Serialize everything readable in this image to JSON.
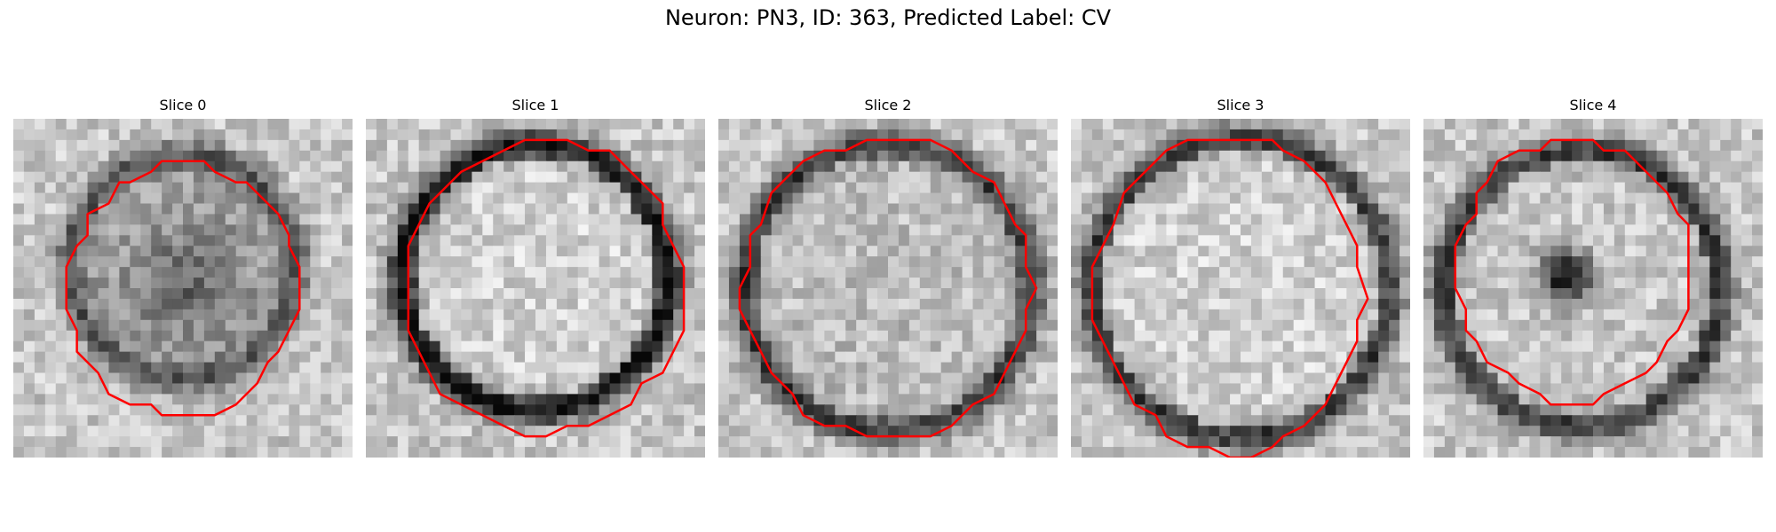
{
  "figure": {
    "title": "Neuron: PN3, ID: 363, Predicted Label: CV",
    "contour_color": "#ff0000"
  },
  "slices": [
    {
      "label": "Slice 0"
    },
    {
      "label": "Slice 1"
    },
    {
      "label": "Slice 2"
    },
    {
      "label": "Slice 3"
    },
    {
      "label": "Slice 4"
    }
  ]
}
